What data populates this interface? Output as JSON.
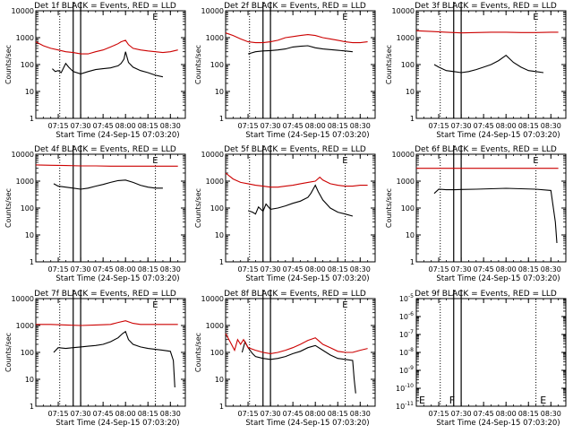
{
  "chart_data": [
    {
      "type": "line",
      "title": "Det 1f BLACK = Events, RED = LLD",
      "xlabel": "Start Time (24-Sep-15 07:03:20)",
      "ylabel": "Counts/sec",
      "yscale": "log",
      "ylim": [
        1,
        10000
      ],
      "ytick_labels": [
        "1",
        "10",
        "100",
        "1000",
        "10000"
      ],
      "xtick_labels": [
        "07:15",
        "07:30",
        "07:45",
        "08:00",
        "08:15",
        "08:30"
      ],
      "marker": "E",
      "series": [
        {
          "name": "Events",
          "color": "#000000",
          "x": [
            "07:11",
            "07:13",
            "07:15",
            "07:17",
            "07:20",
            "07:22",
            "07:25",
            "07:30",
            "07:35",
            "07:40",
            "07:45",
            "07:50",
            "07:55",
            "07:57",
            "07:59",
            "08:00",
            "08:02",
            "08:05",
            "08:10",
            "08:15",
            "08:20",
            "08:25"
          ],
          "values": [
            70,
            55,
            60,
            50,
            110,
            80,
            55,
            45,
            55,
            65,
            70,
            75,
            90,
            110,
            160,
            300,
            120,
            80,
            60,
            50,
            40,
            35
          ]
        },
        {
          "name": "LLD",
          "color": "#cc0000",
          "x": [
            "07:00",
            "07:05",
            "07:10",
            "07:15",
            "07:20",
            "07:25",
            "07:30",
            "07:35",
            "07:40",
            "07:45",
            "07:50",
            "07:55",
            "07:57",
            "08:00",
            "08:02",
            "08:05",
            "08:10",
            "08:15",
            "08:20",
            "08:25",
            "08:30",
            "08:35"
          ],
          "values": [
            700,
            500,
            400,
            350,
            300,
            280,
            250,
            250,
            300,
            350,
            450,
            600,
            700,
            800,
            550,
            400,
            350,
            320,
            300,
            280,
            300,
            350
          ]
        }
      ]
    },
    {
      "type": "line",
      "title": "Det 2f BLACK = Events, RED = LLD",
      "xlabel": "Start Time (24-Sep-15 07:03:20)",
      "ylabel": "Counts/sec",
      "yscale": "log",
      "ylim": [
        1,
        10000
      ],
      "ytick_labels": [
        "1",
        "10",
        "100",
        "1000",
        "10000"
      ],
      "xtick_labels": [
        "07:15",
        "07:30",
        "07:45",
        "08:00",
        "08:15",
        "08:30"
      ],
      "marker": "E",
      "series": [
        {
          "name": "Events",
          "color": "#000000",
          "x": [
            "07:15",
            "07:20",
            "07:25",
            "07:30",
            "07:35",
            "07:40",
            "07:45",
            "07:50",
            "07:55",
            "08:00",
            "08:05",
            "08:10",
            "08:15",
            "08:20",
            "08:25"
          ],
          "values": [
            250,
            300,
            320,
            330,
            350,
            380,
            450,
            480,
            500,
            420,
            380,
            360,
            340,
            320,
            300
          ]
        },
        {
          "name": "LLD",
          "color": "#cc0000",
          "x": [
            "07:00",
            "07:05",
            "07:10",
            "07:15",
            "07:20",
            "07:25",
            "07:30",
            "07:35",
            "07:40",
            "07:45",
            "07:50",
            "07:55",
            "08:00",
            "08:05",
            "08:10",
            "08:15",
            "08:20",
            "08:25",
            "08:30",
            "08:35"
          ],
          "values": [
            1500,
            1200,
            900,
            700,
            650,
            650,
            700,
            800,
            1000,
            1100,
            1200,
            1300,
            1200,
            1000,
            900,
            800,
            700,
            650,
            650,
            700
          ]
        }
      ]
    },
    {
      "type": "line",
      "title": "Det 3f BLACK = Events, RED = LLD",
      "xlabel": "Start Time (24-Sep-15 07:03:20)",
      "ylabel": "Counts/sec",
      "yscale": "log",
      "ylim": [
        1,
        10000
      ],
      "ytick_labels": [
        "1",
        "10",
        "100",
        "1000",
        "10000"
      ],
      "xtick_labels": [
        "07:15",
        "07:30",
        "07:45",
        "08:00",
        "08:15",
        "08:30"
      ],
      "marker": "E",
      "series": [
        {
          "name": "Events",
          "color": "#000000",
          "x": [
            "07:12",
            "07:15",
            "07:20",
            "07:25",
            "07:30",
            "07:35",
            "07:40",
            "07:45",
            "07:50",
            "07:55",
            "08:00",
            "08:05",
            "08:10",
            "08:15",
            "08:20",
            "08:25"
          ],
          "values": [
            100,
            80,
            60,
            55,
            50,
            55,
            65,
            80,
            100,
            140,
            220,
            120,
            80,
            60,
            55,
            50
          ]
        },
        {
          "name": "LLD",
          "color": "#cc0000",
          "x": [
            "07:00",
            "07:10",
            "07:20",
            "07:30",
            "07:40",
            "07:50",
            "08:00",
            "08:10",
            "08:20",
            "08:30",
            "08:35"
          ],
          "values": [
            1800,
            1700,
            1600,
            1500,
            1550,
            1600,
            1600,
            1550,
            1550,
            1600,
            1600
          ]
        }
      ]
    },
    {
      "type": "line",
      "title": "Det 4f BLACK = Events, RED = LLD",
      "xlabel": "Start Time (24-Sep-15 07:03:20)",
      "ylabel": "Counts/sec",
      "yscale": "log",
      "ylim": [
        1,
        10000
      ],
      "ytick_labels": [
        "1",
        "10",
        "100",
        "1000",
        "10000"
      ],
      "xtick_labels": [
        "07:15",
        "07:30",
        "07:45",
        "08:00",
        "08:15",
        "08:30"
      ],
      "marker": "E",
      "series": [
        {
          "name": "Events",
          "color": "#000000",
          "x": [
            "07:12",
            "07:15",
            "07:20",
            "07:25",
            "07:30",
            "07:35",
            "07:40",
            "07:45",
            "07:50",
            "07:55",
            "08:00",
            "08:05",
            "08:10",
            "08:15",
            "08:20",
            "08:25"
          ],
          "values": [
            800,
            650,
            600,
            550,
            500,
            550,
            650,
            750,
            900,
            1050,
            1100,
            900,
            700,
            600,
            550,
            550
          ]
        },
        {
          "name": "LLD",
          "color": "#cc0000",
          "x": [
            "07:00",
            "07:10",
            "07:20",
            "07:30",
            "07:40",
            "07:50",
            "08:00",
            "08:10",
            "08:20",
            "08:30",
            "08:35"
          ],
          "values": [
            4000,
            3900,
            3800,
            3700,
            3700,
            3600,
            3600,
            3600,
            3600,
            3600,
            3600
          ]
        }
      ]
    },
    {
      "type": "line",
      "title": "Det 5f BLACK = Events, RED = LLD",
      "xlabel": "Start Time (24-Sep-15 07:03:20)",
      "ylabel": "Counts/sec",
      "yscale": "log",
      "ylim": [
        1,
        10000
      ],
      "ytick_labels": [
        "1",
        "10",
        "100",
        "1000",
        "10000"
      ],
      "xtick_labels": [
        "07:15",
        "07:30",
        "07:45",
        "08:00",
        "08:15",
        "08:30"
      ],
      "marker": "E",
      "series": [
        {
          "name": "Events",
          "color": "#000000",
          "x": [
            "07:15",
            "07:18",
            "07:20",
            "07:22",
            "07:25",
            "07:27",
            "07:30",
            "07:35",
            "07:40",
            "07:45",
            "07:50",
            "07:55",
            "07:57",
            "08:00",
            "08:02",
            "08:05",
            "08:10",
            "08:15",
            "08:20",
            "08:25"
          ],
          "values": [
            80,
            70,
            60,
            110,
            75,
            140,
            90,
            100,
            120,
            150,
            180,
            250,
            350,
            700,
            400,
            200,
            100,
            70,
            60,
            50
          ]
        },
        {
          "name": "LLD",
          "color": "#cc0000",
          "x": [
            "07:00",
            "07:05",
            "07:10",
            "07:15",
            "07:20",
            "07:25",
            "07:30",
            "07:35",
            "07:40",
            "07:45",
            "07:50",
            "07:55",
            "08:00",
            "08:03",
            "08:05",
            "08:10",
            "08:15",
            "08:20",
            "08:25",
            "08:30",
            "08:35"
          ],
          "values": [
            2000,
            1200,
            900,
            800,
            700,
            650,
            600,
            600,
            650,
            700,
            800,
            900,
            1000,
            1400,
            1100,
            800,
            700,
            650,
            650,
            700,
            700
          ]
        }
      ]
    },
    {
      "type": "line",
      "title": "Det 6f BLACK = Events, RED = LLD",
      "xlabel": "Start Time (24-Sep-15 07:03:20)",
      "ylabel": "Counts/sec",
      "yscale": "log",
      "ylim": [
        1,
        10000
      ],
      "ytick_labels": [
        "1",
        "10",
        "100",
        "1000",
        "10000"
      ],
      "xtick_labels": [
        "07:15",
        "07:30",
        "07:45",
        "08:00",
        "08:15",
        "08:30"
      ],
      "marker": "E",
      "series": [
        {
          "name": "Events",
          "color": "#000000",
          "x": [
            "07:12",
            "07:15",
            "07:20",
            "07:25",
            "07:30",
            "07:40",
            "07:50",
            "08:00",
            "08:10",
            "08:20",
            "08:30",
            "08:33",
            "08:34"
          ],
          "values": [
            350,
            500,
            480,
            480,
            490,
            500,
            520,
            540,
            520,
            500,
            450,
            30,
            5
          ]
        },
        {
          "name": "LLD",
          "color": "#cc0000",
          "x": [
            "07:00",
            "07:10",
            "07:20",
            "07:30",
            "07:40",
            "07:50",
            "08:00",
            "08:10",
            "08:20",
            "08:30",
            "08:35"
          ],
          "values": [
            3000,
            3000,
            3000,
            3000,
            3000,
            3000,
            3000,
            3000,
            3000,
            3000,
            3000
          ]
        }
      ]
    },
    {
      "type": "line",
      "title": "Det 7f BLACK = Events, RED = LLD",
      "xlabel": "Start Time (24-Sep-15 07:03:20)",
      "ylabel": "Counts/sec",
      "yscale": "log",
      "ylim": [
        1,
        10000
      ],
      "ytick_labels": [
        "1",
        "10",
        "100",
        "1000",
        "10000"
      ],
      "xtick_labels": [
        "07:15",
        "07:30",
        "07:45",
        "08:00",
        "08:15",
        "08:30"
      ],
      "marker": "E",
      "series": [
        {
          "name": "Events",
          "color": "#000000",
          "x": [
            "07:12",
            "07:15",
            "07:20",
            "07:25",
            "07:30",
            "07:35",
            "07:40",
            "07:45",
            "07:50",
            "07:55",
            "07:58",
            "08:00",
            "08:02",
            "08:05",
            "08:10",
            "08:15",
            "08:20",
            "08:25",
            "08:30",
            "08:32",
            "08:33"
          ],
          "values": [
            100,
            150,
            140,
            150,
            160,
            170,
            180,
            200,
            250,
            350,
            500,
            600,
            300,
            200,
            160,
            140,
            130,
            120,
            110,
            50,
            5
          ]
        },
        {
          "name": "LLD",
          "color": "#cc0000",
          "x": [
            "07:00",
            "07:10",
            "07:20",
            "07:30",
            "07:40",
            "07:50",
            "07:55",
            "08:00",
            "08:05",
            "08:10",
            "08:20",
            "08:30",
            "08:35"
          ],
          "values": [
            1100,
            1100,
            1050,
            1000,
            1050,
            1100,
            1300,
            1500,
            1200,
            1100,
            1100,
            1100,
            1100
          ]
        }
      ]
    },
    {
      "type": "line",
      "title": "Det 8f BLACK = Events, RED = LLD",
      "xlabel": "Start Time (24-Sep-15 07:03:20)",
      "ylabel": "Counts/sec",
      "yscale": "log",
      "ylim": [
        1,
        10000
      ],
      "ytick_labels": [
        "1",
        "10",
        "100",
        "1000",
        "10000"
      ],
      "xtick_labels": [
        "07:15",
        "07:30",
        "07:45",
        "08:00",
        "08:15",
        "08:30"
      ],
      "marker": "E",
      "series": [
        {
          "name": "Events",
          "color": "#000000",
          "x": [
            "07:11",
            "07:13",
            "07:15",
            "07:18",
            "07:20",
            "07:25",
            "07:30",
            "07:35",
            "07:40",
            "07:45",
            "07:50",
            "07:55",
            "08:00",
            "08:05",
            "08:10",
            "08:15",
            "08:20",
            "08:25",
            "08:26",
            "08:27"
          ],
          "values": [
            100,
            250,
            150,
            90,
            70,
            60,
            55,
            60,
            70,
            90,
            110,
            150,
            180,
            120,
            80,
            60,
            55,
            50,
            10,
            3
          ]
        },
        {
          "name": "LLD",
          "color": "#cc0000",
          "x": [
            "07:00",
            "07:03",
            "07:06",
            "07:08",
            "07:10",
            "07:12",
            "07:15",
            "07:20",
            "07:25",
            "07:30",
            "07:35",
            "07:40",
            "07:45",
            "07:50",
            "07:55",
            "08:00",
            "08:03",
            "08:05",
            "08:10",
            "08:15",
            "08:20",
            "08:25",
            "08:30",
            "08:35"
          ],
          "values": [
            500,
            250,
            120,
            300,
            200,
            300,
            150,
            120,
            100,
            90,
            100,
            120,
            150,
            200,
            280,
            350,
            250,
            200,
            150,
            110,
            100,
            100,
            120,
            140
          ]
        }
      ]
    },
    {
      "type": "line",
      "title": "Det 9f BLACK = Events, RED = LLD",
      "xlabel": "Start Time (24-Sep-15 07:03:20)",
      "ylabel": "",
      "yscale": "log",
      "ylim": [
        1e-11,
        1e-05
      ],
      "ytick_labels": [
        {
          "base": "10",
          "exp": "-5"
        },
        {
          "base": "10",
          "exp": "-6"
        },
        {
          "base": "10",
          "exp": "-7"
        },
        {
          "base": "10",
          "exp": "-8"
        },
        {
          "base": "10",
          "exp": "-9"
        },
        {
          "base": "10",
          "exp": "-10"
        },
        {
          "base": "10",
          "exp": "-11"
        }
      ],
      "xtick_labels": [
        "07:15",
        "07:30",
        "07:45",
        "08:00",
        "08:15",
        "08:30"
      ],
      "marker": "E",
      "series": []
    }
  ],
  "panel9_markers": [
    "E",
    "F",
    "E"
  ]
}
